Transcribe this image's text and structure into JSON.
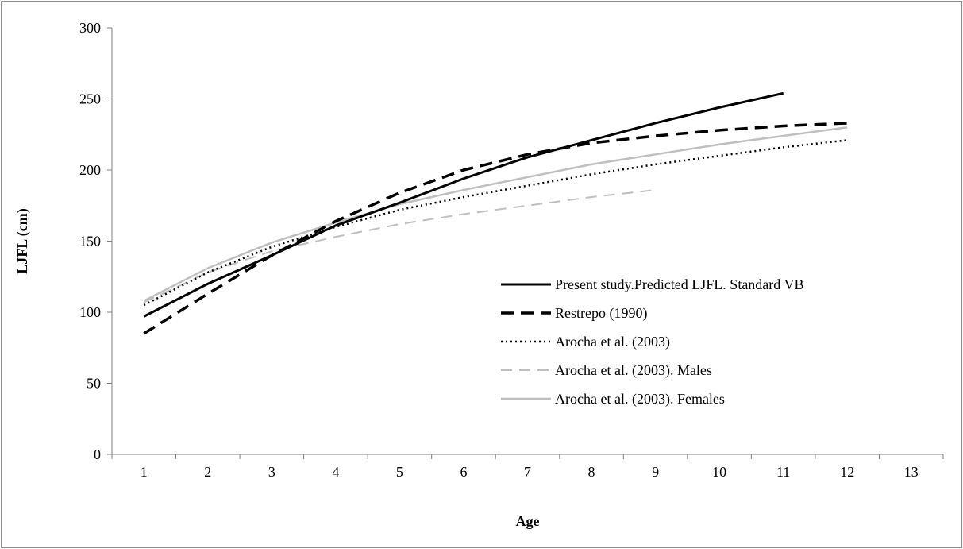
{
  "chart_data": {
    "type": "line",
    "xlabel": "Age",
    "ylabel": "LJFL (cm)",
    "xlim": [
      0.5,
      13.5
    ],
    "ylim": [
      0,
      300
    ],
    "x_ticks": [
      1,
      2,
      3,
      4,
      5,
      6,
      7,
      8,
      9,
      10,
      11,
      12,
      13
    ],
    "y_ticks": [
      0,
      50,
      100,
      150,
      200,
      250,
      300
    ],
    "grid": false,
    "legend_position": "right",
    "series": [
      {
        "name": "Present study.Predicted LJFL. Standard VB",
        "color": "#000000",
        "style": "solid-thick",
        "x": [
          1,
          2,
          3,
          4,
          5,
          6,
          7,
          8,
          9,
          10,
          11
        ],
        "y": [
          97,
          120,
          140,
          161,
          177,
          194,
          209,
          221,
          233,
          244,
          254
        ]
      },
      {
        "name": "Restrepo (1990)",
        "color": "#000000",
        "style": "dashed-thick",
        "x": [
          1,
          2,
          3,
          4,
          5,
          6,
          7,
          8,
          9,
          10,
          11,
          12
        ],
        "y": [
          85,
          113,
          140,
          164,
          184,
          200,
          211,
          219,
          224,
          228,
          231,
          233
        ]
      },
      {
        "name": "Arocha et al. (2003)",
        "color": "#000000",
        "style": "dotted",
        "x": [
          1,
          2,
          3,
          4,
          5,
          6,
          7,
          8,
          9,
          10,
          11,
          12
        ],
        "y": [
          105,
          128,
          146,
          160,
          172,
          181,
          189,
          197,
          204,
          210,
          216,
          221
        ]
      },
      {
        "name": "Arocha et al. (2003). Males",
        "color": "#bfbfbf",
        "style": "dashed",
        "x": [
          1,
          2,
          3,
          4,
          5,
          6,
          7,
          8,
          9
        ],
        "y": [
          107,
          128,
          143,
          153,
          162,
          169,
          175,
          181,
          186
        ]
      },
      {
        "name": "Arocha et al. (2003). Females",
        "color": "#bfbfbf",
        "style": "solid",
        "x": [
          1,
          2,
          3,
          4,
          5,
          6,
          7,
          8,
          9,
          10,
          11,
          12
        ],
        "y": [
          108,
          131,
          149,
          163,
          176,
          186,
          195,
          204,
          211,
          218,
          224,
          230
        ]
      }
    ]
  }
}
